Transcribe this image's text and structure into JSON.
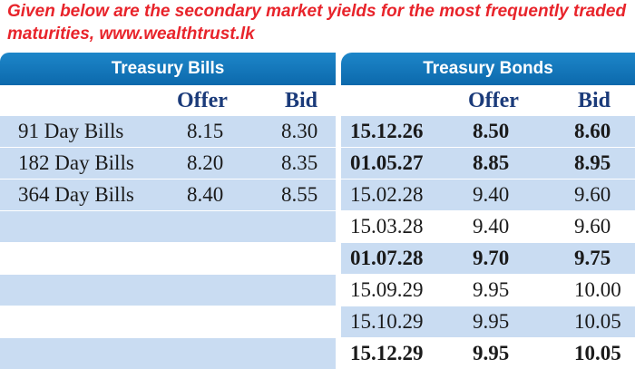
{
  "caption": "Given below are the secondary market yields for the most frequently traded maturities, www.wealthtrust.lk",
  "bills": {
    "title": "Treasury Bills",
    "offer_label": "Offer",
    "bid_label": "Bid",
    "rows": [
      {
        "name": "91 Day Bills",
        "offer": "8.15",
        "bid": "8.30"
      },
      {
        "name": "182 Day Bills",
        "offer": "8.20",
        "bid": "8.35"
      },
      {
        "name": "364 Day Bills",
        "offer": "8.40",
        "bid": "8.55"
      }
    ]
  },
  "bonds": {
    "title": "Treasury Bonds",
    "offer_label": "Offer",
    "bid_label": "Bid",
    "rows": [
      {
        "maturity": "15.12.26",
        "offer": "8.50",
        "bid": "8.60",
        "bold": true
      },
      {
        "maturity": "01.05.27",
        "offer": "8.85",
        "bid": "8.95",
        "bold": true
      },
      {
        "maturity": "15.02.28",
        "offer": "9.40",
        "bid": "9.60",
        "bold": false
      },
      {
        "maturity": "15.03.28",
        "offer": "9.40",
        "bid": "9.60",
        "bold": false
      },
      {
        "maturity": "01.07.28",
        "offer": "9.70",
        "bid": "9.75",
        "bold": true
      },
      {
        "maturity": "15.09.29",
        "offer": "9.95",
        "bid": "10.00",
        "bold": false
      },
      {
        "maturity": "15.10.29",
        "offer": "9.95",
        "bid": "10.05",
        "bold": false
      },
      {
        "maturity": "15.12.29",
        "offer": "9.95",
        "bid": "10.05",
        "bold": true
      }
    ]
  },
  "colors": {
    "header_blue": "#0c69ac",
    "row_shade": "#c9dcf2",
    "caption_red": "#e8242b",
    "column_head_navy": "#1b3b7a"
  }
}
